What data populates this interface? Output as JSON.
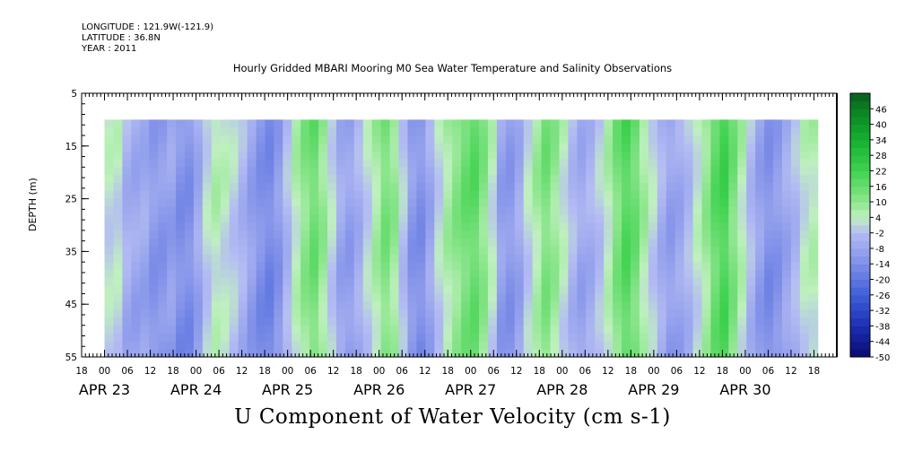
{
  "header": {
    "longitude": "LONGITUDE : 121.9W(-121.9)",
    "latitude": "LATITUDE : 36.8N",
    "year": "YEAR : 2011"
  },
  "chart_data": {
    "type": "heatmap",
    "title": "Hourly Gridded MBARI Mooring M0 Sea Water Temperature and Salinity Observations",
    "xlabel": "U Component of Water Velocity (cm s-1)",
    "ylabel": "DEPTH (m)",
    "y_ticks": [
      "5",
      "15",
      "25",
      "35",
      "45",
      "55"
    ],
    "ylim": [
      5,
      55
    ],
    "data_depth_range": [
      10,
      55
    ],
    "x_hour_ticks": [
      "18",
      "00",
      "06",
      "12",
      "18",
      "00",
      "06",
      "12",
      "18",
      "00",
      "06",
      "12",
      "18",
      "00",
      "06",
      "12",
      "18",
      "00",
      "06",
      "12",
      "18",
      "00",
      "06",
      "12",
      "18",
      "00",
      "06",
      "12",
      "18",
      "00",
      "06",
      "12",
      "18"
    ],
    "x_date_labels": [
      "APR 23",
      "APR 24",
      "APR 25",
      "APR 26",
      "APR 27",
      "APR 28",
      "APR 29",
      "APR 30"
    ],
    "colorbar_labels": [
      "46",
      "40",
      "34",
      "28",
      "22",
      "16",
      "10",
      "4",
      "-2",
      "-8",
      "-14",
      "-20",
      "-26",
      "-32",
      "-38",
      "-44",
      "-50"
    ],
    "colorbar_range": [
      -50,
      52
    ],
    "time_start_hour": 0,
    "time_end_hour": 187,
    "columns_approx_u_cm_s": [
      3,
      3,
      -4,
      -6,
      -6,
      -10,
      -10,
      -8,
      -12,
      -12,
      -6,
      2,
      6,
      4,
      1,
      -3,
      -8,
      -12,
      -14,
      -10,
      -2,
      6,
      12,
      16,
      10,
      2,
      -6,
      -8,
      -4,
      2,
      8,
      14,
      10,
      0,
      -10,
      -12,
      -6,
      2,
      8,
      12,
      16,
      18,
      12,
      4,
      -8,
      -10,
      -6,
      2,
      8,
      14,
      10,
      4,
      -2,
      -6,
      -4,
      0,
      6,
      14,
      20,
      16,
      8,
      2,
      -4,
      -8,
      -6,
      -2,
      4,
      10,
      18,
      22,
      14,
      6,
      -2,
      -8,
      -12,
      -10,
      -6,
      -2,
      4,
      6
    ]
  }
}
